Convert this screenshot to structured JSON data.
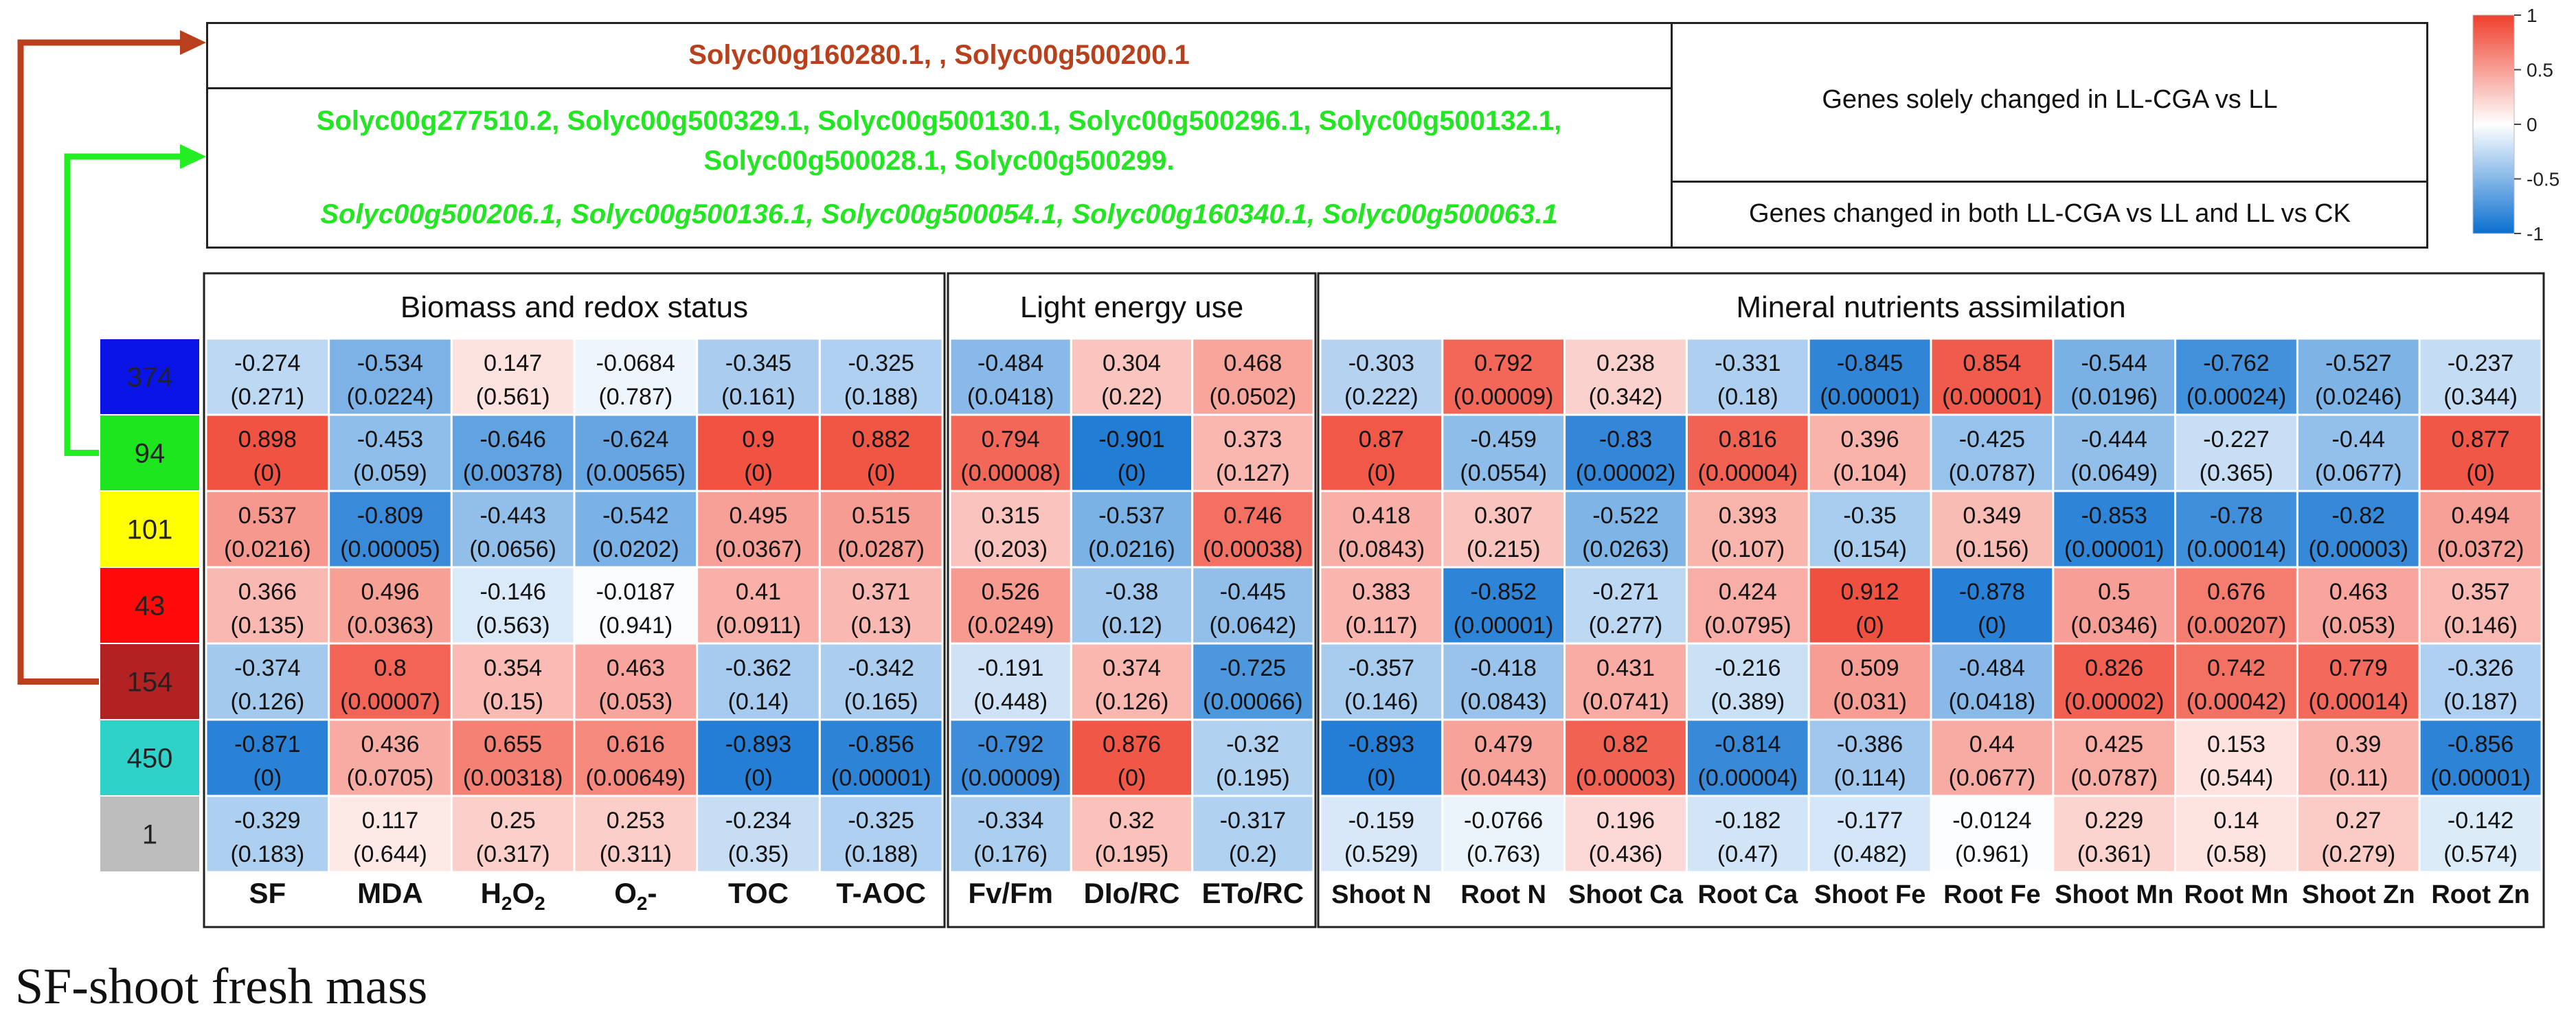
{
  "genes": {
    "solely_group1": "Solyc00g160280.1, , Solyc00g500200.1",
    "solely_group2_line1": "Solyc00g277510.2, Solyc00g500329.1, Solyc00g500130.1, Solyc00g500296.1, Solyc00g500132.1,",
    "solely_group2_line2": "Solyc00g500028.1, Solyc00g500299.",
    "both": "Solyc00g500206.1, Solyc00g500136.1, Solyc00g500054.1, Solyc00g160340.1, Solyc00g500063.1",
    "label_solely": "Genes solely changed in LL-CGA vs LL",
    "label_both": "Genes changed in both LL-CGA vs LL and LL vs CK"
  },
  "footnote": "SF-shoot fresh mass",
  "colors": {
    "negative": "#0a6fd0",
    "neutral": "#ffffff",
    "positive": "#ef3f2c",
    "arrow_brown": "#b8401c",
    "arrow_green": "#22ee22"
  },
  "chart_data": {
    "type": "heatmap",
    "value_range": [
      -1,
      1
    ],
    "colorbar_ticks": [
      "1",
      "0.5",
      "0",
      "-0.5",
      "-1"
    ],
    "groups": [
      "Biomass and redox status",
      "Light energy use",
      "Mineral nutrients assimilation"
    ],
    "group_sizes": [
      6,
      3,
      10
    ],
    "modules": [
      {
        "label": "374",
        "color": "#0a14e6"
      },
      {
        "label": "94",
        "color": "#1ee61e"
      },
      {
        "label": "101",
        "color": "#ffff00"
      },
      {
        "label": "43",
        "color": "#ff0a0a"
      },
      {
        "label": "154",
        "color": "#b22222"
      },
      {
        "label": "450",
        "color": "#2ed2c8"
      },
      {
        "label": "1",
        "color": "#bdbdbd"
      }
    ],
    "columns": [
      "SF",
      "MDA",
      "H2O2",
      "O2-",
      "TOC",
      "T-AOC",
      "Fv/Fm",
      "DIo/RC",
      "ETo/RC",
      "Shoot N",
      "Root N",
      "Shoot Ca",
      "Root Ca",
      "Shoot Fe",
      "Root Fe",
      "Shoot Mn",
      "Root Mn",
      "Shoot Zn",
      "Root Zn"
    ],
    "values": [
      [
        -0.274,
        -0.534,
        0.147,
        -0.0684,
        -0.345,
        -0.325,
        -0.484,
        0.304,
        0.468,
        -0.303,
        0.792,
        0.238,
        -0.331,
        -0.845,
        0.854,
        -0.544,
        -0.762,
        -0.527,
        -0.237
      ],
      [
        0.898,
        -0.453,
        -0.646,
        -0.624,
        0.9,
        0.882,
        0.794,
        -0.901,
        0.373,
        0.87,
        -0.459,
        -0.83,
        0.816,
        0.396,
        -0.425,
        -0.444,
        -0.227,
        -0.44,
        0.877
      ],
      [
        0.537,
        -0.809,
        -0.443,
        -0.542,
        0.495,
        0.515,
        0.315,
        -0.537,
        0.746,
        0.418,
        0.307,
        -0.522,
        0.393,
        -0.35,
        0.349,
        -0.853,
        -0.78,
        -0.82,
        0.494
      ],
      [
        0.366,
        0.496,
        -0.146,
        -0.0187,
        0.41,
        0.371,
        0.526,
        -0.38,
        -0.445,
        0.383,
        -0.852,
        -0.271,
        0.424,
        0.912,
        -0.878,
        0.5,
        0.676,
        0.463,
        0.357
      ],
      [
        -0.374,
        0.8,
        0.354,
        0.463,
        -0.362,
        -0.342,
        -0.191,
        0.374,
        -0.725,
        -0.357,
        -0.418,
        0.431,
        -0.216,
        0.509,
        -0.484,
        0.826,
        0.742,
        0.779,
        -0.326
      ],
      [
        -0.871,
        0.436,
        0.655,
        0.616,
        -0.893,
        -0.856,
        -0.792,
        0.876,
        -0.32,
        -0.893,
        0.479,
        0.82,
        -0.814,
        -0.386,
        0.44,
        0.425,
        0.153,
        0.39,
        -0.856
      ],
      [
        -0.329,
        0.117,
        0.25,
        0.253,
        -0.234,
        -0.325,
        -0.334,
        0.32,
        -0.317,
        -0.159,
        -0.0766,
        0.196,
        -0.182,
        -0.177,
        -0.0124,
        0.229,
        0.14,
        0.27,
        -0.142
      ]
    ],
    "pvalues": [
      [
        "(0.271)",
        "(0.0224)",
        "(0.561)",
        "(0.787)",
        "(0.161)",
        "(0.188)",
        "(0.0418)",
        "(0.22)",
        "(0.0502)",
        "(0.222)",
        "(0.00009)",
        "(0.342)",
        "(0.18)",
        "(0.00001)",
        "(0.00001)",
        "(0.0196)",
        "(0.00024)",
        "(0.0246)",
        "(0.344)"
      ],
      [
        "(0)",
        "(0.059)",
        "(0.00378)",
        "(0.00565)",
        "(0)",
        "(0)",
        "(0.00008)",
        "(0)",
        "(0.127)",
        "(0)",
        "(0.0554)",
        "(0.00002)",
        "(0.00004)",
        "(0.104)",
        "(0.0787)",
        "(0.0649)",
        "(0.365)",
        "(0.0677)",
        "(0)"
      ],
      [
        "(0.0216)",
        "(0.00005)",
        "(0.0656)",
        "(0.0202)",
        "(0.0367)",
        "(0.0287)",
        "(0.203)",
        "(0.0216)",
        "(0.00038)",
        "(0.0843)",
        "(0.215)",
        "(0.0263)",
        "(0.107)",
        "(0.154)",
        "(0.156)",
        "(0.00001)",
        "(0.00014)",
        "(0.00003)",
        "(0.0372)"
      ],
      [
        "(0.135)",
        "(0.0363)",
        "(0.563)",
        "(0.941)",
        "(0.0911)",
        "(0.13)",
        "(0.0249)",
        "(0.12)",
        "(0.0642)",
        "(0.117)",
        "(0.00001)",
        "(0.277)",
        "(0.0795)",
        "(0)",
        "(0)",
        "(0.0346)",
        "(0.00207)",
        "(0.053)",
        "(0.146)"
      ],
      [
        "(0.126)",
        "(0.00007)",
        "(0.15)",
        "(0.053)",
        "(0.14)",
        "(0.165)",
        "(0.448)",
        "(0.126)",
        "(0.00066)",
        "(0.146)",
        "(0.0843)",
        "(0.0741)",
        "(0.389)",
        "(0.031)",
        "(0.0418)",
        "(0.00002)",
        "(0.00042)",
        "(0.00014)",
        "(0.187)"
      ],
      [
        "(0)",
        "(0.0705)",
        "(0.00318)",
        "(0.00649)",
        "(0)",
        "(0.00001)",
        "(0.00009)",
        "(0)",
        "(0.195)",
        "(0)",
        "(0.0443)",
        "(0.00003)",
        "(0.00004)",
        "(0.114)",
        "(0.0677)",
        "(0.0787)",
        "(0.544)",
        "(0.11)",
        "(0.00001)"
      ],
      [
        "(0.183)",
        "(0.644)",
        "(0.317)",
        "(0.311)",
        "(0.35)",
        "(0.188)",
        "(0.176)",
        "(0.195)",
        "(0.2)",
        "(0.529)",
        "(0.763)",
        "(0.436)",
        "(0.47)",
        "(0.482)",
        "(0.961)",
        "(0.361)",
        "(0.58)",
        "(0.279)",
        "(0.574)"
      ]
    ]
  }
}
